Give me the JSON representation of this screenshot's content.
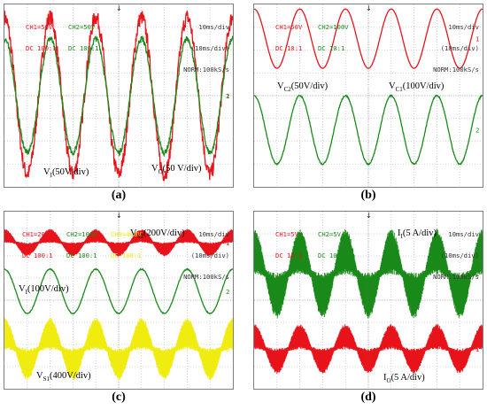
{
  "chart_data": [
    {
      "type": "line",
      "caption": "(a)",
      "header": {
        "ch1": [
          "CH1=50V",
          "DC 100:1"
        ],
        "ch2": [
          "CH2=50V",
          "DC 100:1"
        ],
        "settings": [
          "10ms/div",
          "(10ms/div)",
          "NORM:100kS/s"
        ]
      },
      "x": {
        "unit": "ms",
        "range": [
          0,
          100
        ],
        "div": 10
      },
      "series": [
        {
          "name": "V_I",
          "color": "#e8141b",
          "channel": 1,
          "amplitude_v": 172,
          "cycles": 5,
          "phase_deg": 90,
          "offset_div": 0,
          "volts_per_div": 50,
          "noise": 0.05
        },
        {
          "name": "V_O",
          "color": "#1a8a1a",
          "channel": 2,
          "amplitude_v": 125,
          "cycles": 5,
          "phase_deg": 90,
          "offset_div": 0,
          "volts_per_div": 50,
          "noise": 0.025
        }
      ],
      "annotations": [
        {
          "sub": "I",
          "pre": "V",
          "post": "(50V/div)",
          "text": "VI(50V/div)"
        },
        {
          "sub": "O",
          "pre": "V",
          "post": "(50 V/div)",
          "text": "VO(50 V/div)"
        }
      ]
    },
    {
      "type": "line",
      "caption": "(b)",
      "header": {
        "ch1": [
          "CH1=50V",
          "DC 10:1"
        ],
        "ch2": [
          "CH2=100V",
          "DC 10:1"
        ],
        "settings": [
          "10ms/div",
          "(10ms/div)",
          "NORM:100kS/s"
        ]
      },
      "x": {
        "unit": "ms",
        "range": [
          0,
          100
        ],
        "div": 10
      },
      "series": [
        {
          "name": "V_C2",
          "color": "#e8141b",
          "channel": 1,
          "amplitude_v": 65,
          "cycles": 5,
          "phase_deg": 90,
          "offset_div": 2.5,
          "volts_per_div": 50,
          "noise": 0.0
        },
        {
          "name": "V_C1",
          "color": "#1a8a1a",
          "channel": 2,
          "amplitude_v": 150,
          "cycles": 5,
          "phase_deg": 90,
          "offset_div": -1.5,
          "volts_per_div": 100,
          "noise": 0.01
        }
      ],
      "annotations": [
        {
          "sub": "C2",
          "pre": "V",
          "post": "(50V/div)",
          "text": "VC2(50V/div)"
        },
        {
          "sub": "C1",
          "pre": "V",
          "post": "(100V/div)",
          "text": "VC1(100V/div)"
        }
      ]
    },
    {
      "type": "line",
      "caption": "(c)",
      "header": {
        "ch1": [
          "CH1=200V",
          "DC 100:1"
        ],
        "ch2": [
          "CH2=100V",
          "DC 100:1"
        ],
        "ch3": [
          "CH3=400V",
          "DC 100:1"
        ],
        "settings": [
          "10ms/div",
          "(10ms/div)",
          "NORM:100kS/s"
        ]
      },
      "x": {
        "unit": "ms",
        "range": [
          0,
          100
        ],
        "div": 10
      },
      "series": [
        {
          "name": "V_S2",
          "color": "#e8141b",
          "channel": 1,
          "amplitude_v": 110,
          "cycles": 5,
          "phase_deg": 90,
          "offset_div": 2.6,
          "volts_per_div": 200,
          "noise": 0.0,
          "chopped": true
        },
        {
          "name": "V_I",
          "color": "#1a8a1a",
          "channel": 2,
          "amplitude_v": 100,
          "cycles": 5,
          "phase_deg": 90,
          "offset_div": 0.4,
          "volts_per_div": 100,
          "noise": 0.01
        },
        {
          "name": "V_S1",
          "color": "#f0ec10",
          "channel": 3,
          "amplitude_v": 500,
          "cycles": 5,
          "phase_deg": 90,
          "offset_div": -2.2,
          "volts_per_div": 400,
          "noise": 0.0,
          "chopped": true
        }
      ],
      "annotations": [
        {
          "sub": "S2",
          "pre": "V",
          "post": "(200V/div)",
          "text": "VS2(200V/div)"
        },
        {
          "sub": "I",
          "pre": "V",
          "post": "(100V/div)",
          "text": "VI(100V/div)"
        },
        {
          "sub": "S1",
          "pre": "V",
          "post": "(400V/div)",
          "text": "VS1(400V/div)"
        }
      ]
    },
    {
      "type": "line",
      "caption": "(d)",
      "header": {
        "ch1": [
          "CH1=5V",
          "DC 10:1"
        ],
        "ch2": [
          "CH2=5V",
          "DC 100:1"
        ],
        "settings": [
          "10ms/div",
          "(10ms/div)",
          "NORM:100kS/s"
        ]
      },
      "x": {
        "unit": "ms",
        "range": [
          0,
          100
        ],
        "div": 10
      },
      "series": [
        {
          "name": "I_O",
          "color": "#e8141b",
          "channel": 1,
          "amplitude_a": 5,
          "cycles": 5,
          "phase_deg": 90,
          "offset_div": -2.2,
          "amps_per_div": 5,
          "noise": 0.0,
          "chopped": true
        },
        {
          "name": "I_I",
          "color": "#1a8a1a",
          "channel": 2,
          "amplitude_a": 9,
          "cycles": 5,
          "phase_deg": 90,
          "offset_div": 1.2,
          "amps_per_div": 5,
          "noise": 0.0,
          "chopped": true
        }
      ],
      "annotations": [
        {
          "sub": "I",
          "pre": "I",
          "post": "(5 A/div)",
          "text": "II(5 A/div)"
        },
        {
          "sub": "O",
          "pre": "I",
          "post": "(5 A/div)",
          "text": "IO(5 A/div)"
        }
      ]
    }
  ]
}
